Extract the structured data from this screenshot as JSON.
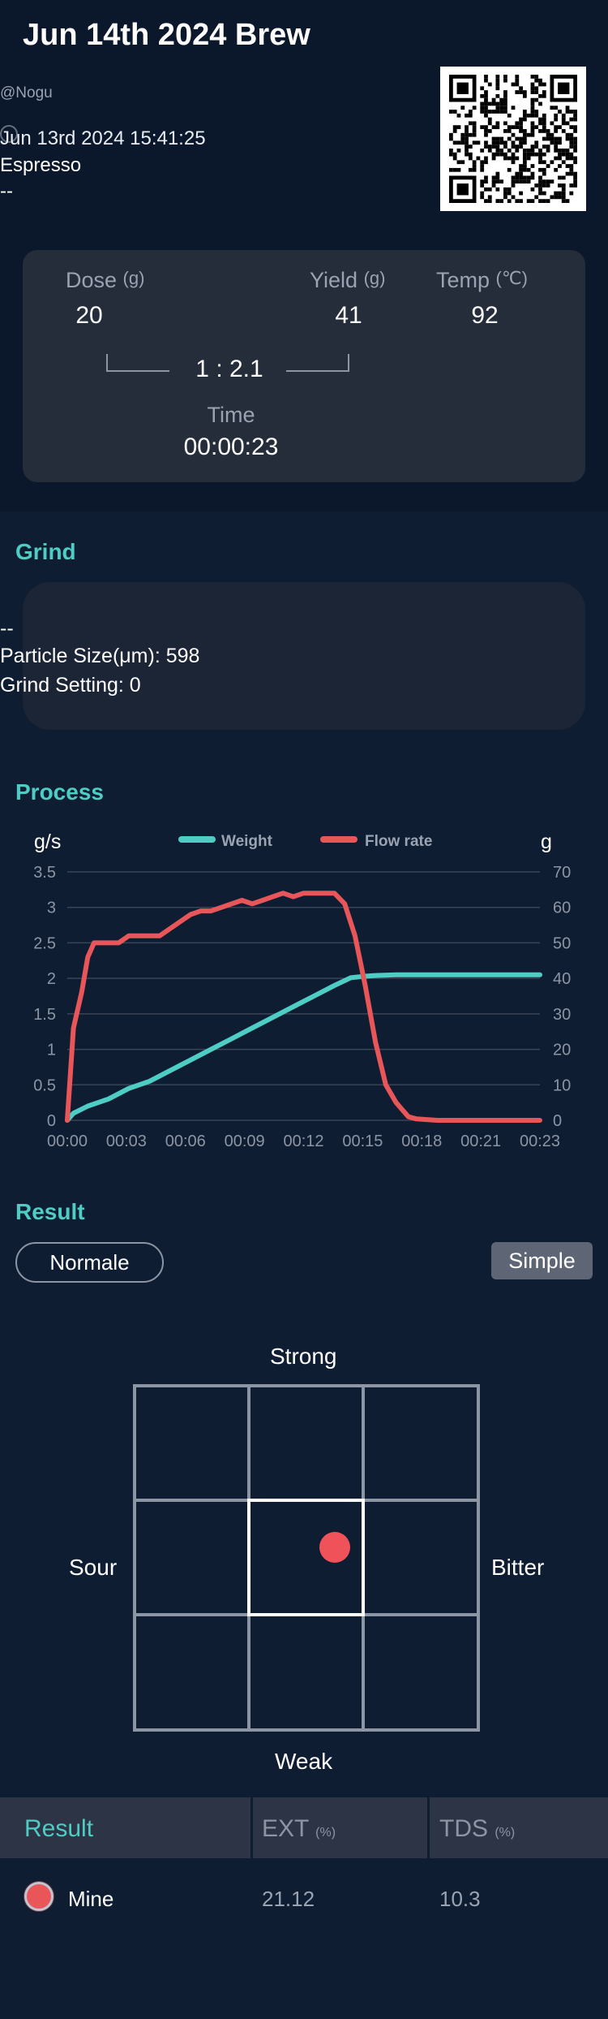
{
  "header": {
    "title": "Jun 14th 2024 Brew",
    "author": "@Nogu",
    "datetime": "Jun 13rd 2024 15:41:25",
    "method": "Espresso",
    "bean": "--"
  },
  "params": {
    "dose_label": "Dose",
    "dose_unit": "(g)",
    "dose_value": "20",
    "yield_label": "Yield",
    "yield_unit": "(g)",
    "yield_value": "41",
    "temp_label": "Temp",
    "temp_unit": "(℃)",
    "temp_value": "92",
    "ratio": "1 : 2.1",
    "time_label": "Time",
    "time_value": "00:00:23"
  },
  "grind": {
    "section_title": "Grind",
    "grinder": "--",
    "particle_size": "Particle Size(μm): 598",
    "grind_setting": "Grind Setting: 0"
  },
  "process": {
    "section_title": "Process"
  },
  "chart_data": {
    "type": "line",
    "left_axis_label": "g/s",
    "right_axis_label": "g",
    "left_ylim": [
      0,
      3.5
    ],
    "right_ylim": [
      0,
      70
    ],
    "left_ticks": [
      "0",
      "0.5",
      "1",
      "1.5",
      "2",
      "2.5",
      "3",
      "3.5"
    ],
    "right_ticks": [
      "0",
      "10",
      "20",
      "30",
      "40",
      "50",
      "60",
      "70"
    ],
    "x_ticks": [
      "00:00",
      "00:03",
      "00:06",
      "00:09",
      "00:12",
      "00:15",
      "00:18",
      "00:21",
      "00:23"
    ],
    "xlim": [
      0,
      23
    ],
    "grid": true,
    "legend_position": "top",
    "series": [
      {
        "name": "Weight",
        "axis": "right",
        "color": "#4ecdc4",
        "x": [
          0,
          0.3,
          1,
          2,
          3,
          4,
          5,
          6,
          7,
          8,
          9,
          10,
          11,
          12,
          13,
          13.8,
          14.5,
          15,
          16,
          18,
          20,
          22,
          23
        ],
        "y": [
          0,
          2,
          4,
          6,
          9,
          11,
          14,
          17,
          20,
          23,
          26,
          29,
          32,
          35,
          38,
          40.2,
          40.6,
          40.8,
          41,
          41,
          41,
          41,
          41
        ]
      },
      {
        "name": "Flow rate",
        "axis": "left",
        "color": "#e85659",
        "x": [
          0,
          0.3,
          0.7,
          1,
          1.3,
          1.6,
          2,
          2.5,
          3,
          3.5,
          4,
          4.5,
          5,
          5.5,
          6,
          6.5,
          7,
          7.5,
          8,
          8.5,
          9,
          9.5,
          10,
          10.5,
          11,
          11.5,
          12,
          12.5,
          13,
          13.5,
          14,
          14.5,
          15,
          15.5,
          16,
          16.3,
          16.6,
          17,
          18,
          20,
          22,
          23
        ],
        "y": [
          0,
          1.3,
          1.8,
          2.3,
          2.5,
          2.5,
          2.5,
          2.5,
          2.6,
          2.6,
          2.6,
          2.6,
          2.7,
          2.8,
          2.9,
          2.95,
          2.95,
          3.0,
          3.05,
          3.1,
          3.05,
          3.1,
          3.15,
          3.2,
          3.15,
          3.2,
          3.2,
          3.2,
          3.2,
          3.05,
          2.6,
          1.9,
          1.1,
          0.5,
          0.25,
          0.15,
          0.05,
          0.02,
          0,
          0,
          0,
          0
        ]
      }
    ]
  },
  "result": {
    "section_title": "Result",
    "normal_button": "Normale",
    "simple_button": "Simple",
    "taste": {
      "top": "Strong",
      "bottom": "Weak",
      "left": "Sour",
      "right": "Bitter"
    },
    "table": {
      "header_result": "Result",
      "header_ext": "EXT",
      "header_ext_unit": "(%)",
      "header_tds": "TDS",
      "header_tds_unit": "(%)",
      "row_name": "Mine",
      "row_ext": "21.12",
      "row_tds": "10.3"
    }
  },
  "colors": {
    "accent": "#4ecdc4",
    "flow": "#e85659",
    "background": "#0f1d33"
  }
}
